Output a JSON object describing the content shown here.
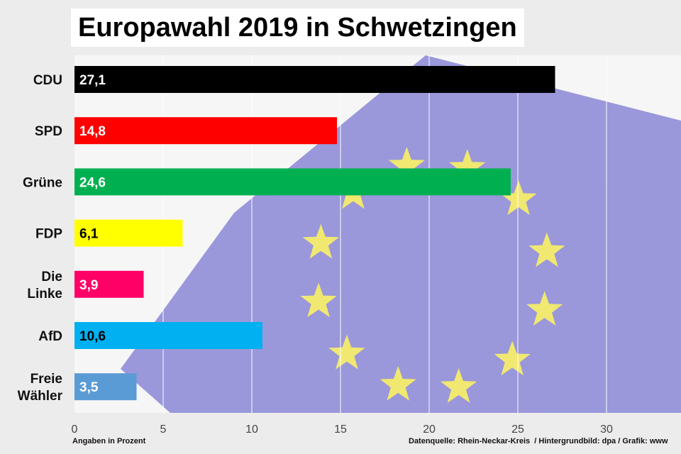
{
  "chart_data": {
    "type": "bar",
    "title": "Europawahl 2019 in Schwetzingen",
    "categories": [
      "CDU",
      "SPD",
      "Grüne",
      "FDP",
      "Die Linke",
      "AfD",
      "Freie Wähler"
    ],
    "category_lines": [
      [
        "CDU"
      ],
      [
        "SPD"
      ],
      [
        "Grüne"
      ],
      [
        "FDP"
      ],
      [
        "Die",
        "Linke"
      ],
      [
        "AfD"
      ],
      [
        "Freie",
        "Wähler"
      ]
    ],
    "values": [
      27.1,
      14.8,
      24.6,
      6.1,
      3.9,
      10.6,
      3.5
    ],
    "value_labels": [
      "27,1",
      "14,8",
      "24,6",
      "6,1",
      "3,9",
      "10,6",
      "3,5"
    ],
    "colors": [
      "#000000",
      "#ff0000",
      "#00b050",
      "#ffff00",
      "#ff0066",
      "#00b0f0",
      "#5b9bd5"
    ],
    "label_colors": [
      "#ffffff",
      "#ffffff",
      "#ffffff",
      "#000000",
      "#ffffff",
      "#000000",
      "#ffffff"
    ],
    "xticks": [
      0,
      5,
      10,
      15,
      20,
      25,
      30
    ],
    "xlim": [
      0,
      34
    ],
    "xlabel": "Angaben in Prozent",
    "grid": true
  },
  "source": "Datenquelle: Rhein-Neckar-Kreis  / Hintergrundbild: dpa / Grafik: www"
}
